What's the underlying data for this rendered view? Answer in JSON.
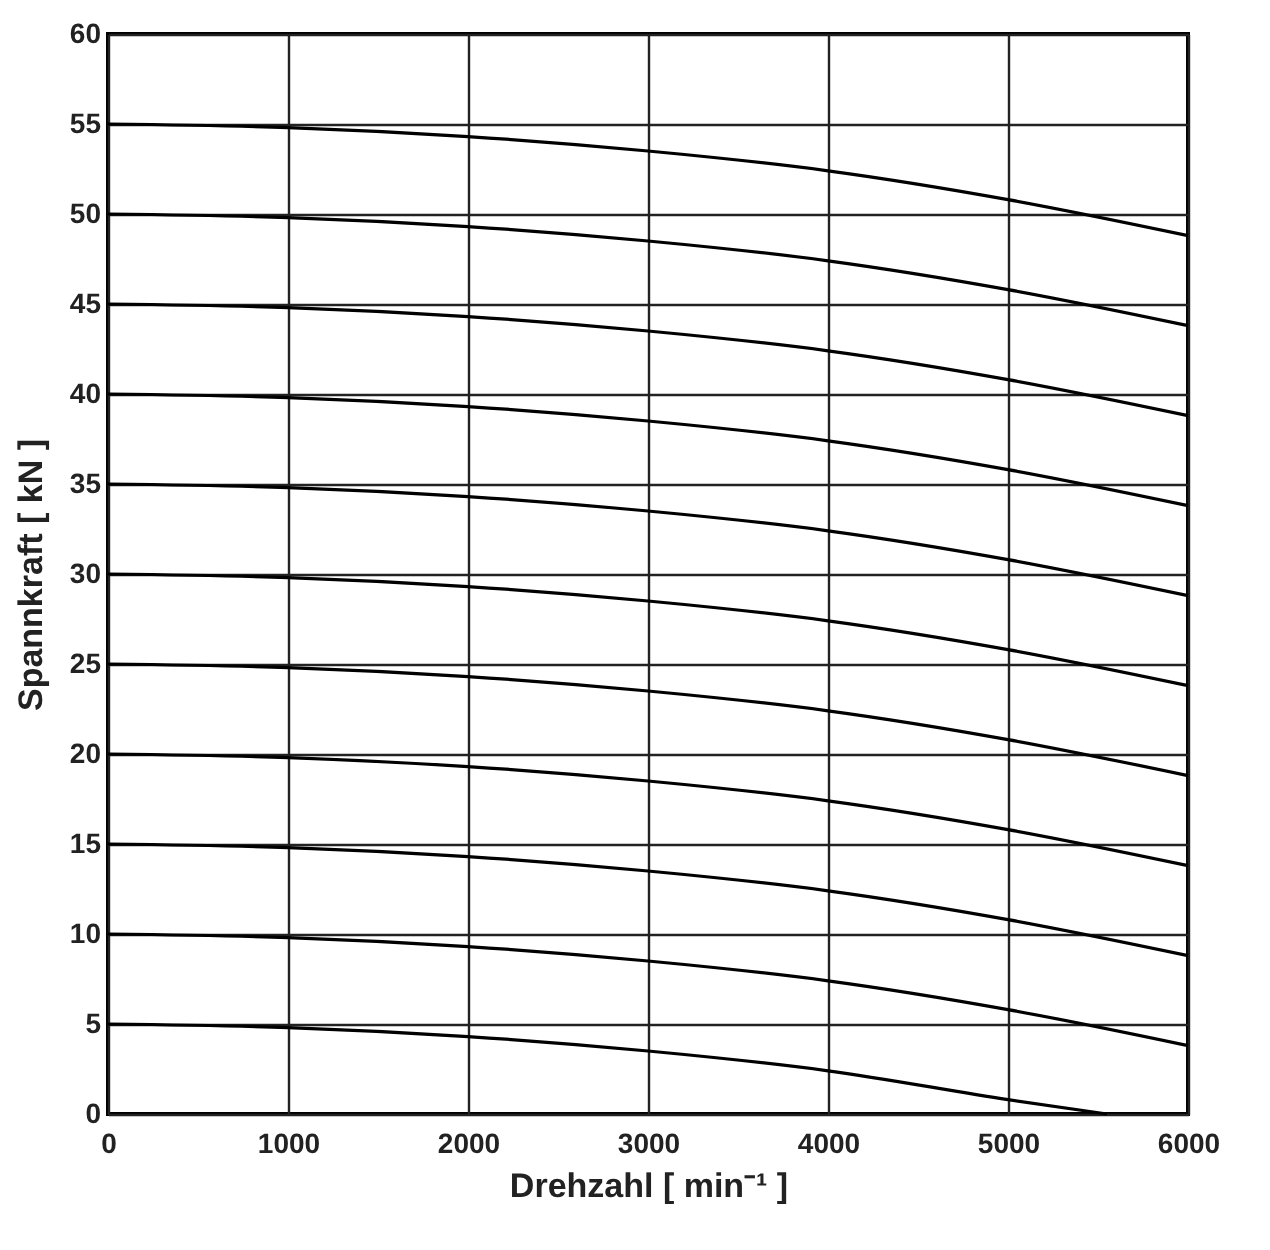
{
  "chart_data": {
    "type": "line",
    "xlabel": "Drehzahl   [ min⁻¹ ]",
    "ylabel": "Spannkraft   [ kN ]",
    "x": [
      0,
      1000,
      2000,
      3000,
      4000,
      5000,
      6000
    ],
    "xlim": [
      0,
      6000
    ],
    "xticks": [
      0,
      1000,
      2000,
      3000,
      4000,
      5000,
      6000
    ],
    "ylim": [
      0,
      60
    ],
    "yticks": [
      0,
      5,
      10,
      15,
      20,
      25,
      30,
      35,
      40,
      45,
      50,
      55,
      60
    ],
    "grid": true,
    "series": [
      {
        "color": "#000000",
        "values": [
          55,
          54.8,
          54.3,
          53.5,
          52.4,
          50.8,
          48.8
        ]
      },
      {
        "color": "#000000",
        "values": [
          50,
          49.8,
          49.3,
          48.5,
          47.4,
          45.8,
          43.8
        ]
      },
      {
        "color": "#000000",
        "values": [
          45,
          44.8,
          44.3,
          43.5,
          42.4,
          40.8,
          38.8
        ]
      },
      {
        "color": "#000000",
        "values": [
          40,
          39.8,
          39.3,
          38.5,
          37.4,
          35.8,
          33.8
        ]
      },
      {
        "color": "#000000",
        "values": [
          35,
          34.8,
          34.3,
          33.5,
          32.4,
          30.8,
          28.8
        ]
      },
      {
        "color": "#000000",
        "values": [
          30,
          29.8,
          29.3,
          28.5,
          27.4,
          25.8,
          23.8
        ]
      },
      {
        "color": "#000000",
        "values": [
          25,
          24.8,
          24.3,
          23.5,
          22.4,
          20.8,
          18.8
        ]
      },
      {
        "color": "#000000",
        "values": [
          20,
          19.8,
          19.3,
          18.5,
          17.4,
          15.8,
          13.8
        ]
      },
      {
        "color": "#000000",
        "values": [
          15,
          14.8,
          14.3,
          13.5,
          12.4,
          10.8,
          8.8
        ]
      },
      {
        "color": "#000000",
        "values": [
          10,
          9.8,
          9.3,
          8.5,
          7.4,
          5.8,
          3.8
        ]
      },
      {
        "color": "#000000",
        "x": [
          0,
          1000,
          2000,
          3000,
          4000,
          5000,
          5550
        ],
        "values": [
          5,
          4.8,
          4.3,
          3.5,
          2.4,
          0.8,
          0
        ]
      }
    ]
  }
}
